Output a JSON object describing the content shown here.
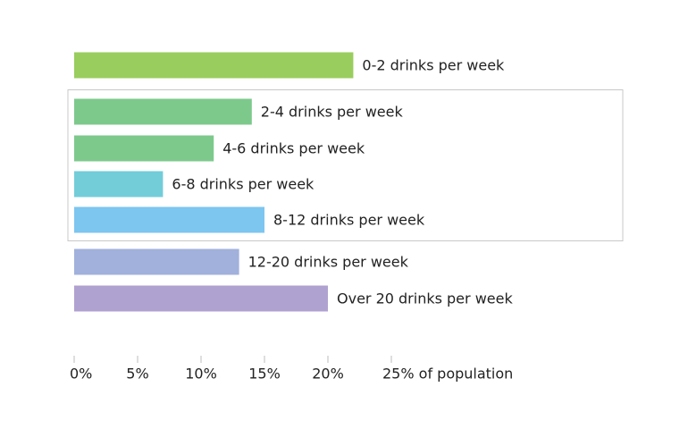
{
  "chart_data": {
    "type": "bar",
    "orientation": "horizontal",
    "categories": [
      "0-2 drinks per week",
      "2-4 drinks per week",
      "4-6 drinks per week",
      "6-8 drinks per week",
      "8-12 drinks per week",
      "12-20 drinks per week",
      "Over 20 drinks per week"
    ],
    "values": [
      22,
      14,
      11,
      7,
      15,
      13,
      20
    ],
    "colors": [
      "#99cd5d",
      "#7dc98c",
      "#7dc98c",
      "#72cdd9",
      "#7cc6f0",
      "#a1b1dc",
      "#b0a2d0"
    ],
    "xlim": [
      0,
      25
    ],
    "x_ticks": [
      {
        "value": 0,
        "label": "0%"
      },
      {
        "value": 5,
        "label": "5%"
      },
      {
        "value": 10,
        "label": "10%"
      },
      {
        "value": 15,
        "label": "15%"
      },
      {
        "value": 20,
        "label": "20%"
      },
      {
        "value": 25,
        "label": "25% of population"
      }
    ],
    "highlight_group": {
      "first": 1,
      "last": 4
    },
    "grid": false,
    "legend": "none"
  }
}
